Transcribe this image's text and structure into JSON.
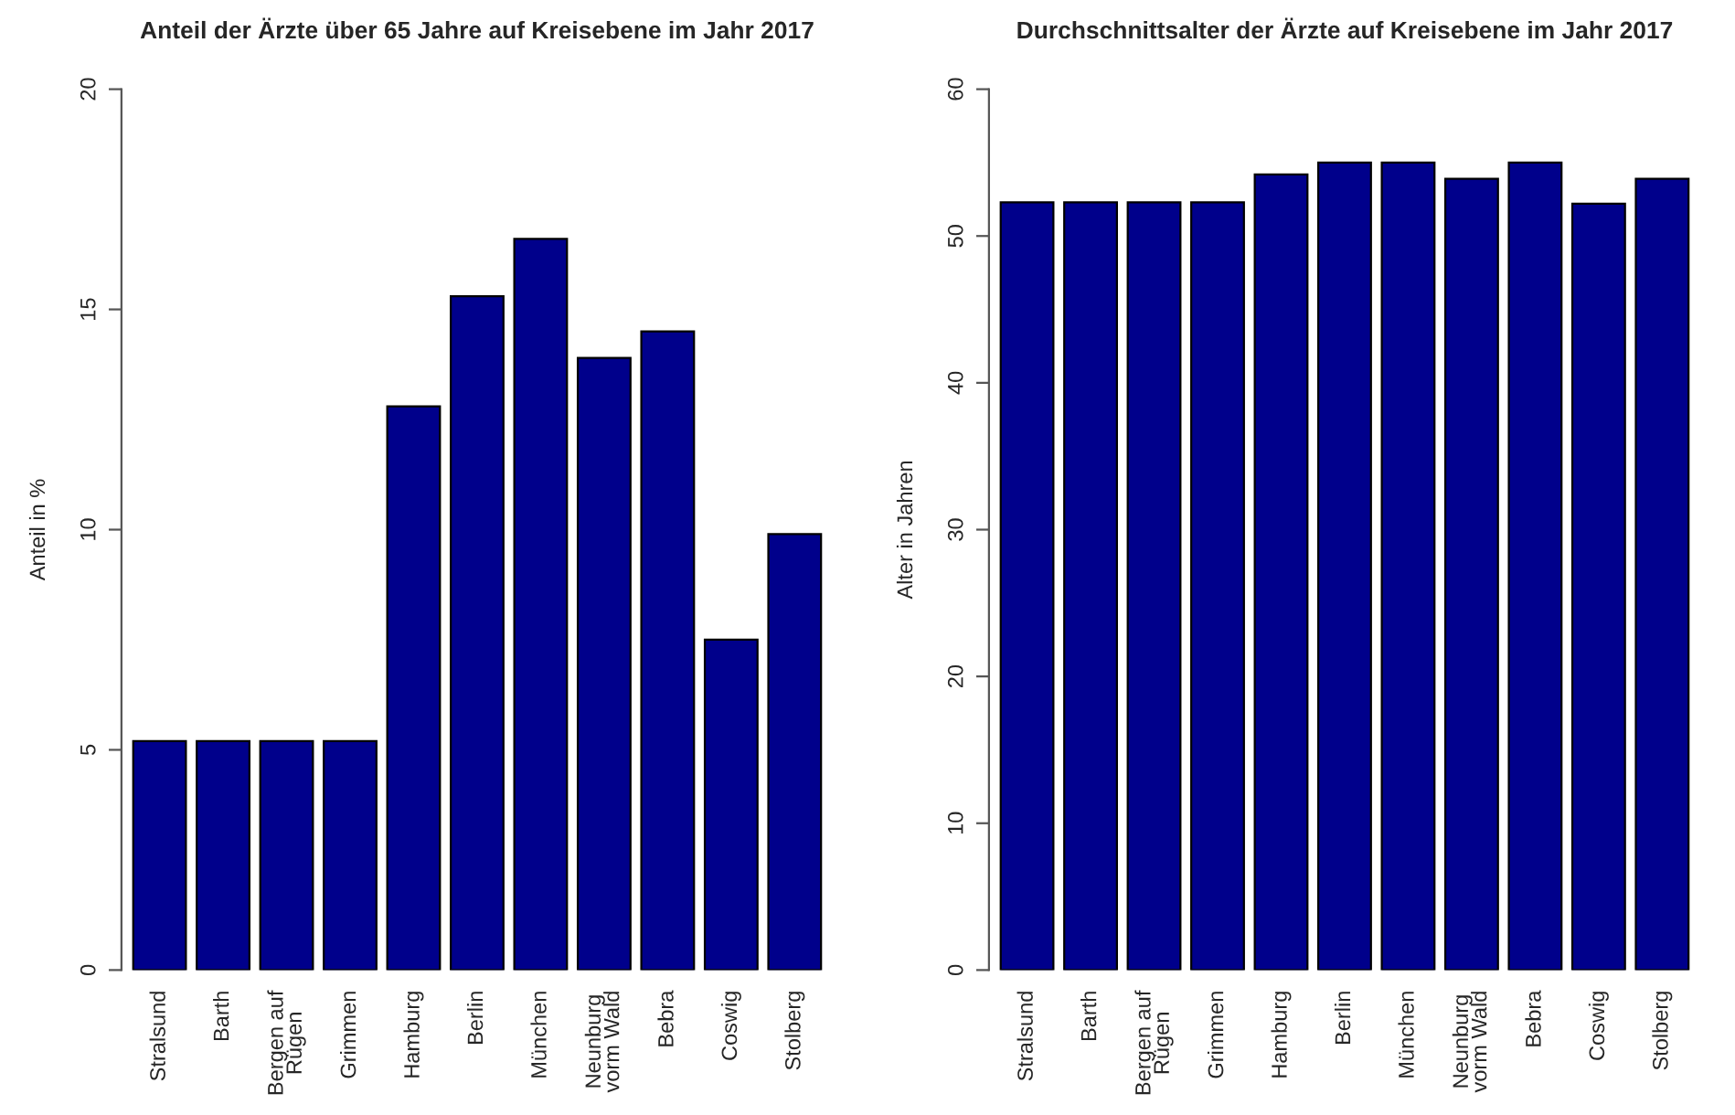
{
  "chart_data": [
    {
      "type": "bar",
      "title": "Anteil der Ärzte über 65 Jahre auf Kreisebene im Jahr 2017",
      "ylabel": "Anteil in %",
      "categories": [
        "Stralsund",
        "Barth",
        "Bergen auf\nRügen",
        "Grimmen",
        "Hamburg",
        "Berlin",
        "München",
        "Neunburg\nvorm Wald",
        "Bebra",
        "Coswig",
        "Stolberg"
      ],
      "values": [
        5.2,
        5.2,
        5.2,
        5.2,
        12.8,
        15.3,
        16.6,
        13.9,
        14.5,
        7.5,
        9.9
      ],
      "color": "#00008b",
      "ylim": [
        0,
        20
      ],
      "yticks": [
        0,
        5,
        10,
        15,
        20
      ],
      "grid": false,
      "legend": false
    },
    {
      "type": "bar",
      "title": "Durchschnittsalter der Ärzte auf Kreisebene im Jahr 2017",
      "ylabel": "Alter in Jahren",
      "categories": [
        "Stralsund",
        "Barth",
        "Bergen auf\nRügen",
        "Grimmen",
        "Hamburg",
        "Berlin",
        "München",
        "Neunburg\nvorm Wald",
        "Bebra",
        "Coswig",
        "Stolberg"
      ],
      "values": [
        52.3,
        52.3,
        52.3,
        52.3,
        54.2,
        55.0,
        55.0,
        53.9,
        55.0,
        52.2,
        53.9
      ],
      "color": "#00008b",
      "ylim": [
        0,
        60
      ],
      "yticks": [
        0,
        10,
        20,
        30,
        40,
        50,
        60
      ],
      "grid": false,
      "legend": false
    }
  ]
}
